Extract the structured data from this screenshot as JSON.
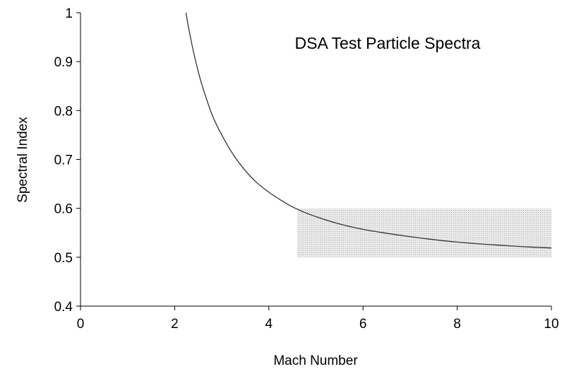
{
  "chart_data": {
    "type": "line",
    "title": "DSA Test Particle Spectra",
    "xlabel": "Mach Number",
    "ylabel": "Spectral Index",
    "xlim": [
      0,
      10
    ],
    "ylim": [
      0.4,
      1
    ],
    "x_ticks": [
      "0",
      "2",
      "4",
      "6",
      "8",
      "10"
    ],
    "y_ticks": [
      "0.4",
      "0.5",
      "0.6",
      "0.7",
      "0.8",
      "0.9",
      "1"
    ],
    "grid": false,
    "legend": "none",
    "series": [
      {
        "x": [
          2.24,
          2.3,
          2.4,
          2.5,
          2.6,
          2.8,
          3.0,
          3.25,
          3.5,
          3.75,
          4.0,
          4.25,
          4.5,
          4.75,
          5.0,
          5.5,
          6.0,
          6.5,
          7.0,
          7.5,
          8.0,
          8.5,
          9.0,
          9.5,
          10.0
        ],
        "y": [
          1.0,
          0.967,
          0.92,
          0.88,
          0.846,
          0.79,
          0.75,
          0.709,
          0.677,
          0.652,
          0.633,
          0.617,
          0.603,
          0.592,
          0.583,
          0.568,
          0.557,
          0.549,
          0.542,
          0.536,
          0.531,
          0.527,
          0.524,
          0.521,
          0.519
        ]
      }
    ],
    "shaded_region": {
      "x": [
        4.6,
        10
      ],
      "y": [
        0.5,
        0.6
      ]
    }
  },
  "colors": {
    "line": "#333333",
    "axis": "#000000",
    "shade_fill": "#e9e9e9",
    "shade_dots": "#b5b5b5"
  }
}
